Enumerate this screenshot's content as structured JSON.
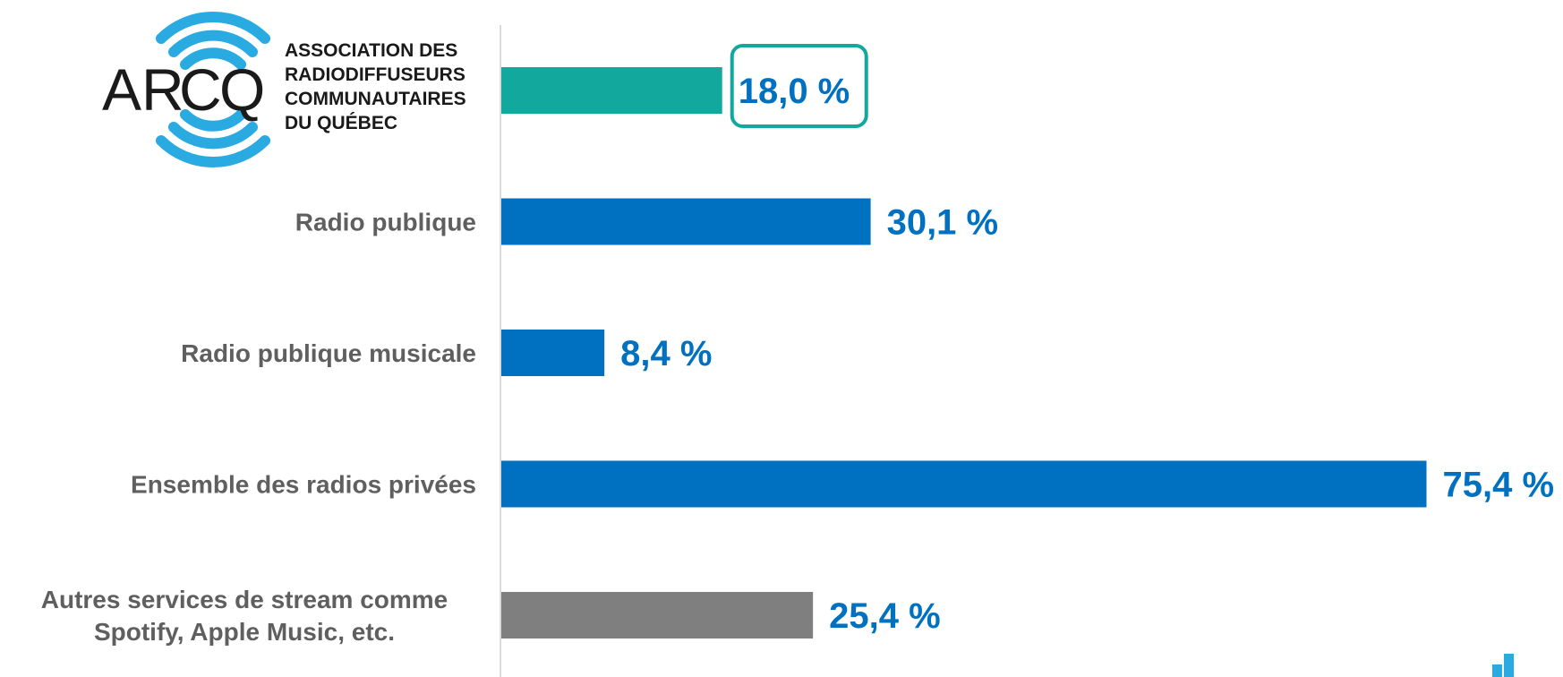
{
  "logo": {
    "mark_letters": [
      "A",
      "R",
      "C",
      "Q"
    ],
    "text_lines": [
      "ASSOCIATION DES",
      "RADIODIFFUSEURS",
      "COMMUNAUTAIRES",
      "DU QUÉBEC"
    ],
    "accent_color": "#29abe2"
  },
  "chart_data": {
    "type": "bar",
    "orientation": "horizontal",
    "title": "",
    "xlabel": "",
    "ylabel": "",
    "xlim": [
      0,
      80
    ],
    "grid": false,
    "categories": [
      "",
      "Radio publique",
      "Radio publique musicale",
      "Ensemble des radios privées",
      "Autres services de stream comme\nSpotify, Apple Music, etc."
    ],
    "values": [
      18.0,
      30.1,
      8.4,
      75.4,
      25.4
    ],
    "value_labels": [
      "18,0 %",
      "30,1 %",
      "8,4 %",
      "75,4 %",
      "25,4 %"
    ],
    "bar_colors": [
      "#13a89e",
      "#0070c0",
      "#0070c0",
      "#0070c0",
      "#7f7f7f"
    ],
    "value_label_color": "#0070c0",
    "highlight_index": 0,
    "highlight_color": "#13a89e"
  }
}
